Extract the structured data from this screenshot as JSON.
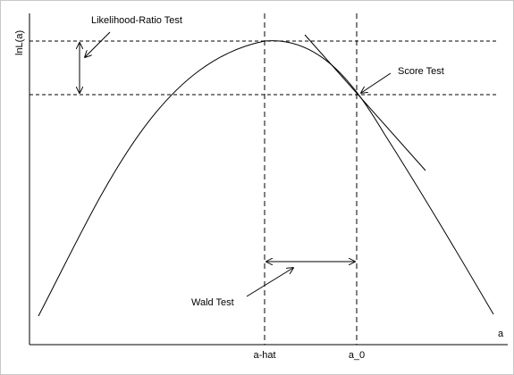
{
  "axes": {
    "y_label": "lnL(a)",
    "x_label": "a",
    "ticks": {
      "a_hat": "a-hat",
      "a_0": "a_0"
    }
  },
  "annotations": {
    "likelihood_ratio": "Likelihood-Ratio Test",
    "score": "Score Test",
    "wald": "Wald Test"
  },
  "colors": {
    "line": "#000000",
    "background": "#ffffff",
    "frame": "#c8c8c8"
  }
}
